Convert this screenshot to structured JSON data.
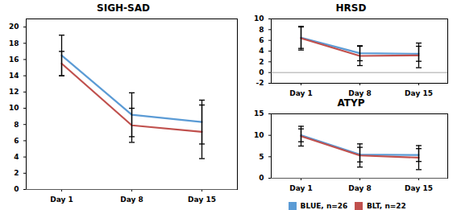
{
  "chart_data": [
    {
      "type": "line",
      "title": "SIGH-SAD",
      "categories": [
        "Day 1",
        "Day 8",
        "Day 15"
      ],
      "series": [
        {
          "name": "BLUE, n=26",
          "color": "#5b9bd5",
          "values": [
            16.5,
            9.2,
            8.3
          ],
          "errors": [
            2.5,
            2.7,
            2.7
          ]
        },
        {
          "name": "BLT, n=22",
          "color": "#c0504d",
          "values": [
            15.5,
            7.9,
            7.1
          ],
          "errors": [
            1.5,
            2.1,
            3.3
          ]
        }
      ],
      "ylim": [
        0,
        21
      ],
      "yticks": [
        0,
        2,
        4,
        6,
        8,
        10,
        12,
        14,
        16,
        18,
        20
      ],
      "grid": false
    },
    {
      "type": "line",
      "title": "HRSD",
      "categories": [
        "Day 1",
        "Day 8",
        "Day 15"
      ],
      "series": [
        {
          "name": "BLUE, n=26",
          "color": "#5b9bd5",
          "values": [
            6.5,
            3.6,
            3.5
          ],
          "errors": [
            2.0,
            1.4,
            1.4
          ]
        },
        {
          "name": "BLT, n=22",
          "color": "#c0504d",
          "values": [
            6.4,
            3.1,
            3.2
          ],
          "errors": [
            2.2,
            1.8,
            2.3
          ]
        }
      ],
      "ylim": [
        -2,
        10
      ],
      "yticks": [
        -2,
        0,
        2,
        4,
        6,
        8,
        10
      ],
      "grid": false
    },
    {
      "type": "line",
      "title": "ATYP",
      "categories": [
        "Day 1",
        "Day 8",
        "Day 15"
      ],
      "series": [
        {
          "name": "BLUE, n=26",
          "color": "#5b9bd5",
          "values": [
            10.0,
            5.5,
            5.4
          ],
          "errors": [
            1.5,
            1.7,
            1.5
          ]
        },
        {
          "name": "BLT, n=22",
          "color": "#c0504d",
          "values": [
            9.8,
            5.3,
            4.8
          ],
          "errors": [
            2.3,
            2.7,
            2.8
          ]
        }
      ],
      "ylim": [
        0,
        15
      ],
      "yticks": [
        0,
        5,
        10,
        15
      ],
      "grid": false,
      "legend": "bottom"
    }
  ]
}
